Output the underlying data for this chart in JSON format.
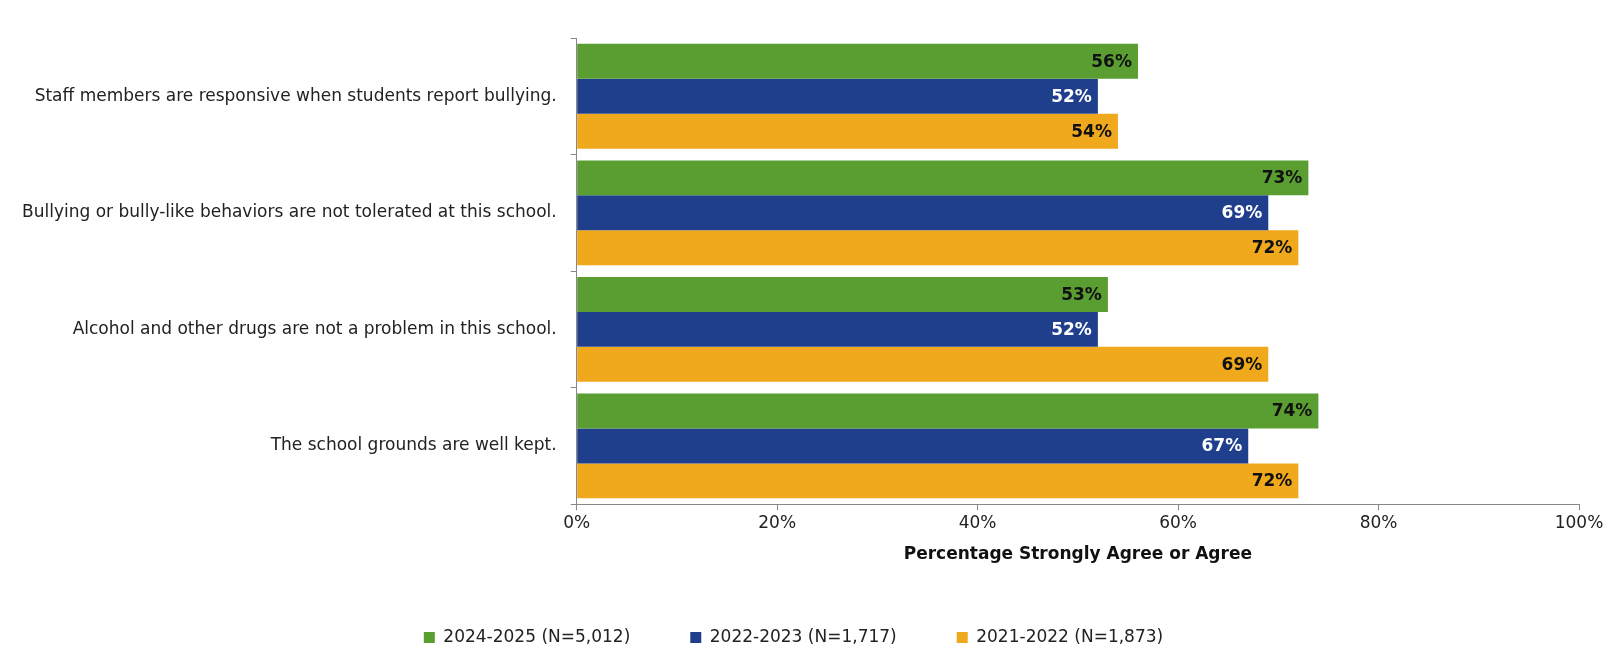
{
  "chart_data": {
    "type": "bar",
    "orientation": "horizontal",
    "categories": [
      "Staff members are responsive when students report bullying.",
      "Bullying or bully-like behaviors are not tolerated at this school.",
      "Alcohol and other drugs are not a problem in this school.",
      "The school grounds are well kept."
    ],
    "series": [
      {
        "name": "2024-2025 (N=5,012)",
        "color": "#5a9e32",
        "values": [
          56,
          73,
          53,
          74
        ],
        "value_labels": [
          "56%",
          "73%",
          "53%",
          "74%"
        ]
      },
      {
        "name": "2022-2023 (N=1,717)",
        "color": "#1f3f8c",
        "values": [
          52,
          69,
          52,
          67
        ],
        "value_labels": [
          "52%",
          "69%",
          "52%",
          "67%"
        ]
      },
      {
        "name": "2021-2022 (N=1,873)",
        "color": "#f0a81c",
        "values": [
          54,
          72,
          69,
          72
        ],
        "value_labels": [
          "54%",
          "72%",
          "69%",
          "72%"
        ]
      }
    ],
    "xlabel": "Percentage Strongly Agree or Agree",
    "xlim": [
      0,
      100
    ],
    "xticks": [
      {
        "value": 0,
        "label": "0%"
      },
      {
        "value": 20,
        "label": "20%"
      },
      {
        "value": 40,
        "label": "40%"
      },
      {
        "value": 60,
        "label": "60%"
      },
      {
        "value": 80,
        "label": "80%"
      },
      {
        "value": 100,
        "label": "100%"
      }
    ],
    "grid": false,
    "legend": "bottom"
  }
}
